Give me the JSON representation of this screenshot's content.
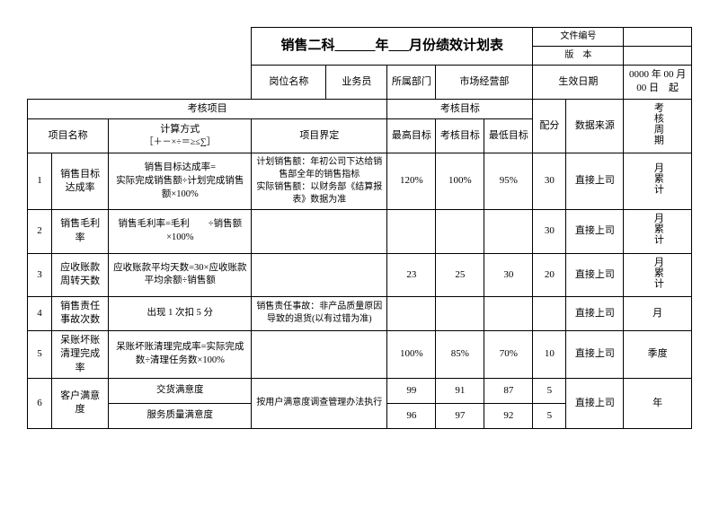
{
  "header": {
    "title": "销售二科______年___月份绩效计划表",
    "doc_no_label": "文件编号",
    "version_label": "版　本",
    "post_label": "岗位名称",
    "post_value": "业务员",
    "dept_label": "所属部门",
    "dept_value": "市场经营部",
    "eff_label": "生效日期",
    "eff_value": "0000 年 00 月 00 日　起"
  },
  "group_headers": {
    "kpi_item": "考核项目",
    "kpi_target": "考核目标",
    "item_name": "项目名称",
    "calc_method_1": "计算方式",
    "calc_method_2": "［＋－×÷＝≥≤∑］",
    "definition": "项目界定",
    "max": "最高目标",
    "mid": "考核目标",
    "min": "最低目标",
    "weight": "配分",
    "source": "数据来源",
    "cycle": "考核周期"
  },
  "rows": [
    {
      "no": "1",
      "name": "销售目标达成率",
      "calc": "销售目标达成率=\n实际完成销售额÷计划完成销售额×100%",
      "def": "计划销售额：年初公司下达给销售部全年的销售指标\n实际销售额：以财务部《结算报表》数据为准",
      "max": "120%",
      "mid": "100%",
      "min": "95%",
      "weight": "30",
      "source": "直接上司",
      "cycle": "月累计"
    },
    {
      "no": "2",
      "name": "销售毛利率",
      "calc": "销售毛利率=毛利　　÷销售额×100%",
      "def": "",
      "max": "",
      "mid": "",
      "min": "",
      "weight": "30",
      "source": "直接上司",
      "cycle": "月累计"
    },
    {
      "no": "3",
      "name": "应收账款周转天数",
      "calc": "应收账款平均天数=30×应收账款平均余额÷销售额",
      "def": "",
      "max": "23",
      "mid": "25",
      "min": "30",
      "weight": "20",
      "source": "直接上司",
      "cycle": "月累计"
    },
    {
      "no": "4",
      "name": "销售责任事故次数",
      "calc": "出现 1 次扣 5 分",
      "def": "销售责任事故：非产品质量原因导致的退货(以有过错为准)",
      "max": "",
      "mid": "",
      "min": "",
      "weight": "",
      "source": "直接上司",
      "cycle": "月"
    },
    {
      "no": "5",
      "name": "呆账坏账清理完成率",
      "calc": "呆账坏账清理完成率=实际完成数÷清理任务数×100%",
      "def": "",
      "max": "100%",
      "mid": "85%",
      "min": "70%",
      "weight": "10",
      "source": "直接上司",
      "cycle": "季度"
    },
    {
      "no": "6",
      "name": "客户满意度",
      "sub1": "交货满意度",
      "sub2": "服务质量满意度",
      "def": "按用户满意度调查管理办法执行",
      "r1": {
        "max": "99",
        "mid": "91",
        "min": "87",
        "weight": "5"
      },
      "r2": {
        "max": "96",
        "mid": "97",
        "min": "92",
        "weight": "5"
      },
      "source": "直接上司",
      "cycle": "年"
    }
  ]
}
